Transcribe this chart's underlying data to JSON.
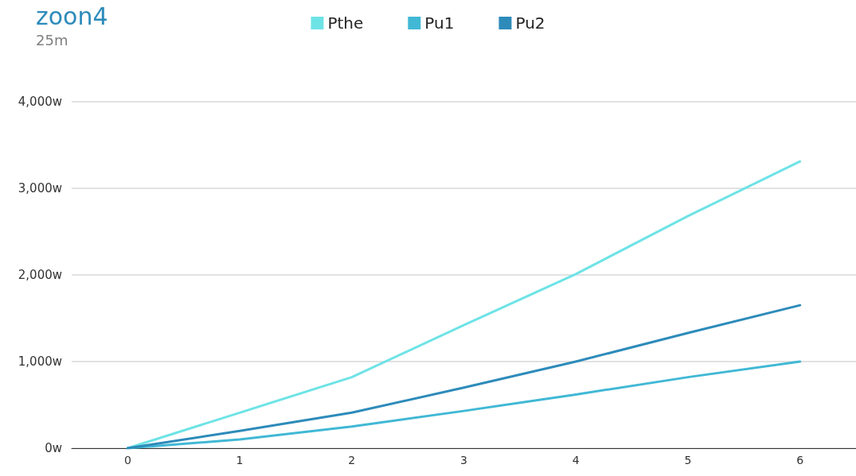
{
  "chart_data": {
    "type": "line",
    "title": "zoon4",
    "subtitle": "25m",
    "categories": [
      "0",
      "1",
      "2",
      "3",
      "4",
      "5",
      "6"
    ],
    "series": [
      {
        "name": "Pthe",
        "color": "#6ee3e6",
        "values": [
          0,
          410,
          820,
          1420,
          2010,
          2680,
          3310
        ]
      },
      {
        "name": "Pu1",
        "color": "#41b8d5",
        "values": [
          0,
          100,
          250,
          430,
          620,
          820,
          1000
        ]
      },
      {
        "name": "Pu2",
        "color": "#2d8bba",
        "values": [
          0,
          200,
          410,
          700,
          1000,
          1330,
          1650
        ]
      }
    ],
    "ylim": [
      0,
      4000
    ],
    "yticks": [
      {
        "value": 0,
        "label": "0w"
      },
      {
        "value": 1000,
        "label": "1,000w"
      },
      {
        "value": 2000,
        "label": "2,000w"
      },
      {
        "value": 3000,
        "label": "3,000w"
      },
      {
        "value": 4000,
        "label": "4,000w"
      }
    ],
    "grid": "y",
    "legend": "top",
    "marker": "none",
    "line_style": "solid"
  }
}
